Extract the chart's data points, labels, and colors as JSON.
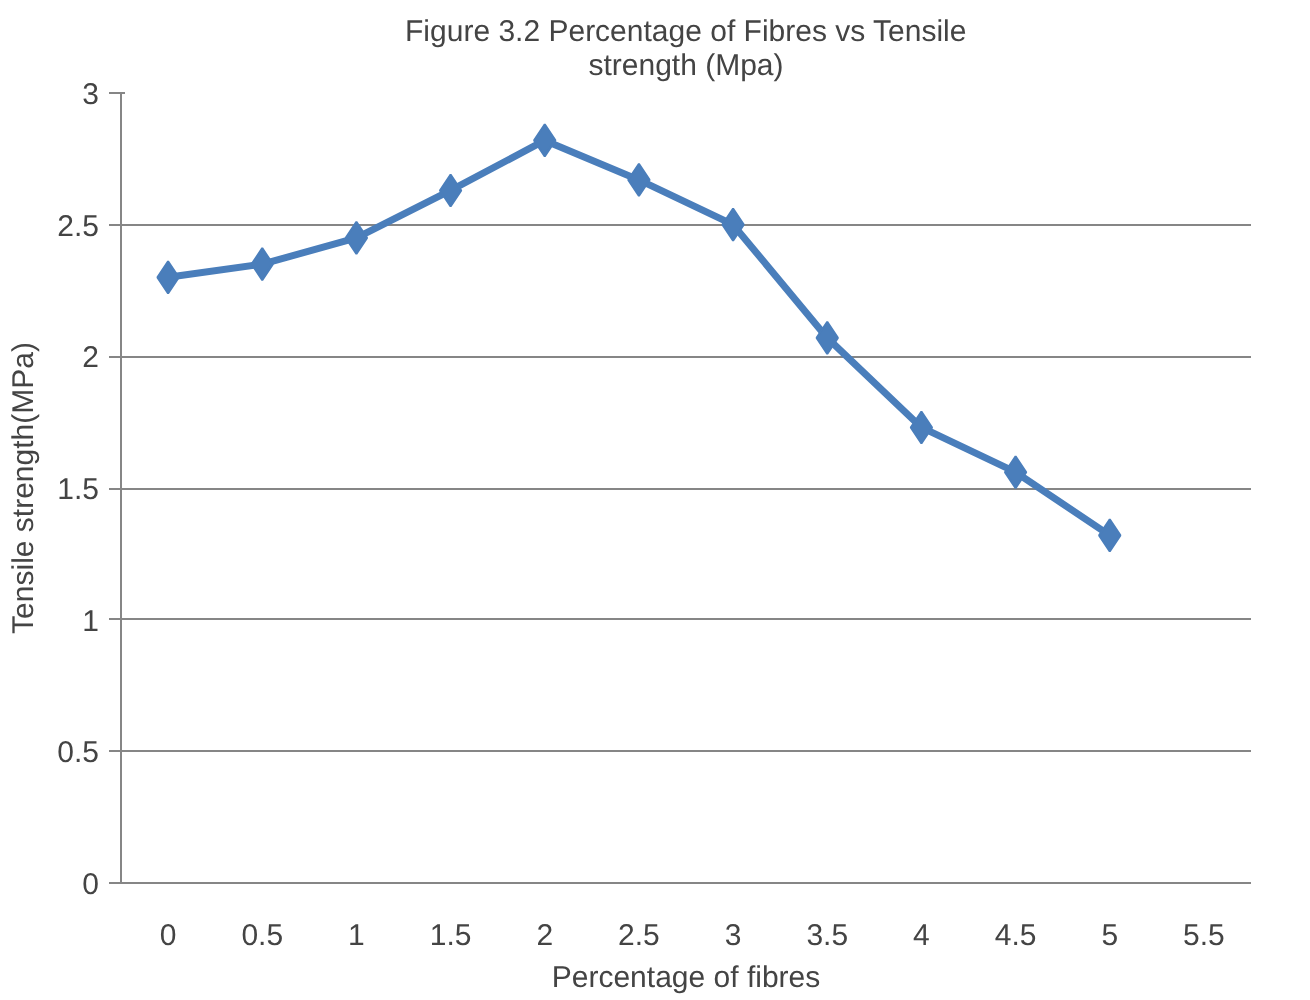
{
  "chart_data": {
    "type": "line",
    "title": "Figure 3.2 Percentage of Fibres vs Tensile strength (Mpa)",
    "xlabel": "Percentage of fibres",
    "ylabel": "Tensile strength(MPa)",
    "categories": [
      "0",
      "0.5",
      "1",
      "1.5",
      "2",
      "2.5",
      "3",
      "3.5",
      "4",
      "4.5",
      "5",
      "5.5"
    ],
    "series": [
      {
        "color": "#4a7ebb",
        "values": [
          2.3,
          2.35,
          2.45,
          2.63,
          2.82,
          2.67,
          2.5,
          2.07,
          1.73,
          1.56,
          1.32,
          null
        ]
      }
    ],
    "ylim": [
      0,
      3
    ],
    "yticks": [
      0,
      0.5,
      1,
      1.5,
      2,
      2.5,
      3
    ],
    "grid": "y",
    "marker": "diamond",
    "line_style": "solid"
  }
}
